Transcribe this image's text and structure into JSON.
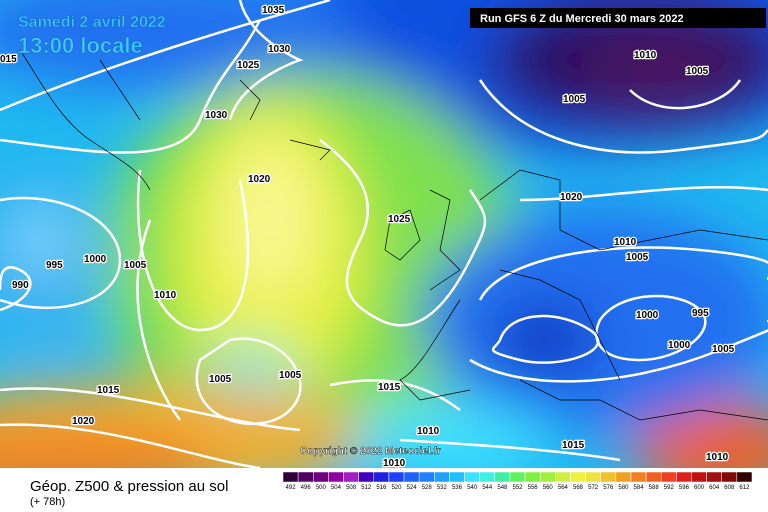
{
  "header": {
    "date": "Samedi 2 avril 2022",
    "time": "13:00 locale",
    "run": "Run GFS 6 Z du Mercredi 30 mars 2022"
  },
  "map": {
    "isobar_labels": [
      1035,
      1030,
      1025,
      "015",
      1030,
      1010,
      1005,
      1005,
      1020,
      1025,
      1020,
      995,
      1000,
      1005,
      990,
      1010,
      1010,
      1005,
      1000,
      995,
      1000,
      1005,
      1005,
      1005,
      1015,
      1015,
      1020,
      1015,
      1010,
      1010,
      1010
    ],
    "copyright": "Copyright © 2022 Meteociel.fr"
  },
  "footer": {
    "title": "Géop. Z500 & pression au sol",
    "lead_time": "(+ 78h)"
  },
  "legend": {
    "values": [
      492,
      496,
      500,
      504,
      508,
      512,
      516,
      520,
      524,
      528,
      532,
      536,
      540,
      544,
      548,
      552,
      556,
      560,
      564,
      568,
      572,
      576,
      580,
      584,
      588,
      592,
      596,
      600,
      604,
      608,
      612
    ],
    "colors": [
      "#30003c",
      "#500060",
      "#700080",
      "#9000a0",
      "#a020c0",
      "#4000c0",
      "#2020e0",
      "#2040ff",
      "#2060ff",
      "#2080ff",
      "#20a0ff",
      "#20c0ff",
      "#40e0ff",
      "#40f0e0",
      "#40f0a0",
      "#60f060",
      "#80f040",
      "#a0f040",
      "#d0f040",
      "#f0f040",
      "#f0e040",
      "#f0c030",
      "#f0a020",
      "#f08020",
      "#f06020",
      "#f04020",
      "#e02020",
      "#c01010",
      "#a01010",
      "#800808",
      "#300000"
    ]
  }
}
